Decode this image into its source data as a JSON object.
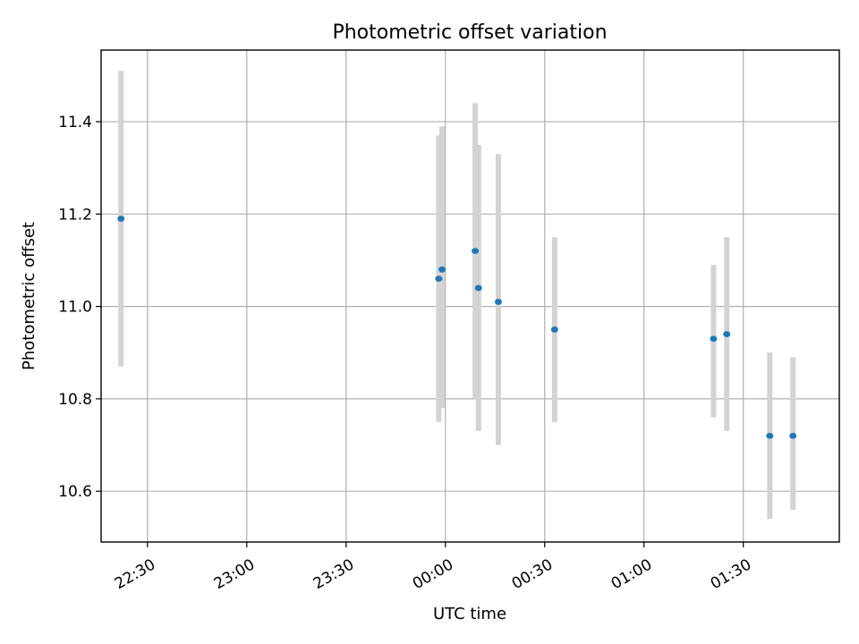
{
  "chart_data": {
    "type": "scatter",
    "title": "Photometric offset variation",
    "xlabel": "UTC time",
    "ylabel": "Photometric offset",
    "x_unit": "UTC time (HH:MM)",
    "xlim": [
      "22:16",
      "01:59"
    ],
    "ylim": [
      10.49,
      11.555
    ],
    "grid": true,
    "x_ticks": [
      "22:30",
      "23:00",
      "23:30",
      "00:00",
      "00:30",
      "01:00",
      "01:30"
    ],
    "y_ticks": [
      10.6,
      10.8,
      11.0,
      11.2,
      11.4
    ],
    "series": [
      {
        "points": [
          {
            "x": "22:22",
            "y": 11.19,
            "err_low": 10.87,
            "err_high": 11.51
          },
          {
            "x": "23:58",
            "y": 11.06,
            "err_low": 10.75,
            "err_high": 11.37
          },
          {
            "x": "23:59",
            "y": 11.08,
            "err_low": 10.78,
            "err_high": 11.39
          },
          {
            "x": "00:09",
            "y": 11.12,
            "err_low": 10.8,
            "err_high": 11.44
          },
          {
            "x": "00:10",
            "y": 11.04,
            "err_low": 10.73,
            "err_high": 11.35
          },
          {
            "x": "00:16",
            "y": 11.01,
            "err_low": 10.7,
            "err_high": 11.33
          },
          {
            "x": "00:33",
            "y": 10.95,
            "err_low": 10.75,
            "err_high": 11.15
          },
          {
            "x": "01:21",
            "y": 10.93,
            "err_low": 10.76,
            "err_high": 11.09
          },
          {
            "x": "01:25",
            "y": 10.94,
            "err_low": 10.73,
            "err_high": 11.15
          },
          {
            "x": "01:38",
            "y": 10.72,
            "err_low": 10.54,
            "err_high": 10.9
          },
          {
            "x": "01:45",
            "y": 10.72,
            "err_low": 10.56,
            "err_high": 10.89
          }
        ],
        "marker_color": "#1f77b4",
        "error_color": "#d3d3d3"
      }
    ]
  }
}
